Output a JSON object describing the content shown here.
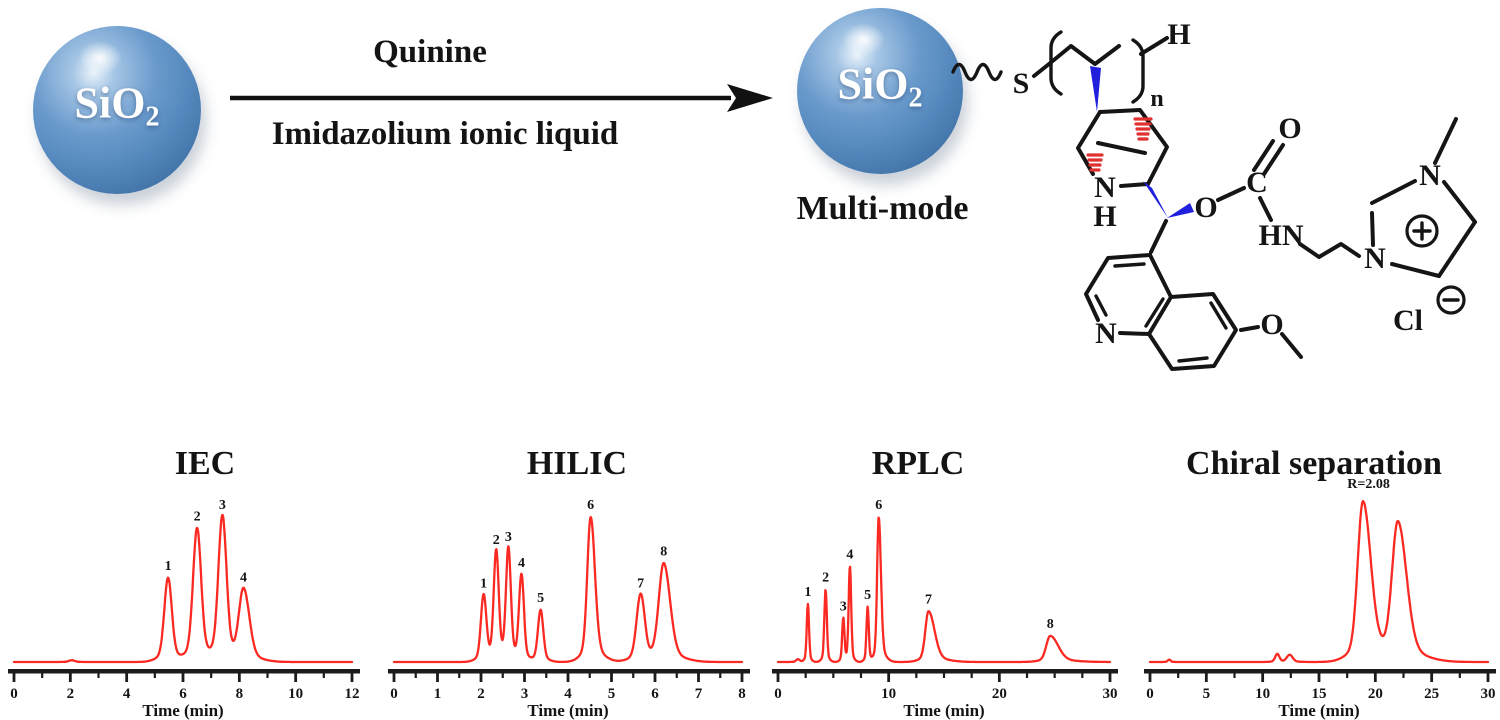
{
  "scheme": {
    "reactant_sphere": {
      "label_main": "SiO",
      "label_sub": "2"
    },
    "arrow": {
      "top_label": "Quinine",
      "bottom_label": "Imidazolium ionic liquid"
    },
    "product_sphere": {
      "label_main": "SiO",
      "label_sub": "2",
      "caption": "Multi-mode"
    },
    "structure": {
      "atoms": {
        "sulfur": "S",
        "terminal_h": "H",
        "repeat_n": "n",
        "quinuclidine_n": "N",
        "quinuclidine_nh": "H",
        "ester_o": "O",
        "carbonyl_c": "C",
        "carbonyl_o": "O",
        "amide_hn": "HN",
        "imidazolium_n_bottom": "N",
        "imidazolium_n_top": "N",
        "plus_sign": "+",
        "chloride": "Cl",
        "minus_sign": "−",
        "quinoline_n": "N",
        "methoxy_o": "O"
      }
    }
  },
  "colors": {
    "trace_red": "#fa2a22",
    "axis_black": "#1b1b1b",
    "sphere_blue": "#5e93c8",
    "wedge_blue": "#2020dd",
    "hash_red": "#e03030"
  },
  "chart_data": [
    {
      "type": "line",
      "title": "IEC",
      "xlabel": "Time (min)",
      "xlim": [
        0,
        12
      ],
      "ticks": [
        0,
        2,
        4,
        6,
        8,
        10,
        12
      ],
      "minor_step": 1,
      "grid": false,
      "ylim": [
        0,
        1.1
      ],
      "peaks": [
        {
          "t": 2.05,
          "h": 0.012,
          "w": 0.1,
          "label": ""
        },
        {
          "t": 5.47,
          "h": 0.58,
          "w": 0.13,
          "label": "1"
        },
        {
          "t": 6.5,
          "h": 0.92,
          "w": 0.14,
          "label": "2"
        },
        {
          "t": 7.4,
          "h": 1.0,
          "w": 0.14,
          "label": "3"
        },
        {
          "t": 8.15,
          "h": 0.5,
          "w": 0.16,
          "tail": 1.25,
          "label": "4"
        }
      ]
    },
    {
      "type": "line",
      "title": "HILIC",
      "xlabel": "Time (min)",
      "xlim": [
        0,
        8
      ],
      "ticks": [
        0,
        1,
        2,
        3,
        4,
        5,
        6,
        7,
        8
      ],
      "minor_step": 0.5,
      "grid": false,
      "ylim": [
        0,
        1.1
      ],
      "peaks": [
        {
          "t": 2.06,
          "h": 0.46,
          "w": 0.06,
          "label": "1"
        },
        {
          "t": 2.35,
          "h": 0.76,
          "w": 0.055,
          "label": "2"
        },
        {
          "t": 2.63,
          "h": 0.78,
          "w": 0.055,
          "label": "3"
        },
        {
          "t": 2.93,
          "h": 0.6,
          "w": 0.055,
          "label": "4"
        },
        {
          "t": 3.37,
          "h": 0.36,
          "w": 0.06,
          "label": "5"
        },
        {
          "t": 4.52,
          "h": 1.0,
          "w": 0.075,
          "tail": 1.3,
          "label": "6"
        },
        {
          "t": 5.67,
          "h": 0.46,
          "w": 0.09,
          "label": "7"
        },
        {
          "t": 6.2,
          "h": 0.68,
          "w": 0.11,
          "tail": 1.3,
          "label": "8"
        }
      ]
    },
    {
      "type": "line",
      "title": "RPLC",
      "xlabel": "Time (min)",
      "xlim": [
        0,
        30
      ],
      "ticks": [
        0,
        10,
        20,
        30
      ],
      "minor_step": 2.5,
      "grid": false,
      "ylim": [
        0,
        1.1
      ],
      "peaks": [
        {
          "t": 1.8,
          "h": 0.02,
          "w": 0.15,
          "label": ""
        },
        {
          "t": 2.7,
          "h": 0.4,
          "w": 0.1,
          "label": "1"
        },
        {
          "t": 4.3,
          "h": 0.5,
          "w": 0.11,
          "label": "2"
        },
        {
          "t": 5.9,
          "h": 0.3,
          "w": 0.1,
          "label": "3"
        },
        {
          "t": 6.5,
          "h": 0.66,
          "w": 0.11,
          "label": "4"
        },
        {
          "t": 8.1,
          "h": 0.38,
          "w": 0.1,
          "label": "5"
        },
        {
          "t": 9.1,
          "h": 1.0,
          "w": 0.14,
          "tail": 1.4,
          "label": "6"
        },
        {
          "t": 13.6,
          "h": 0.35,
          "w": 0.28,
          "tail": 1.9,
          "label": "7"
        },
        {
          "t": 24.6,
          "h": 0.18,
          "w": 0.35,
          "tail": 2.0,
          "label": "8"
        }
      ]
    },
    {
      "type": "line",
      "title": "Chiral separation",
      "xlabel": "Time (min)",
      "xlim": [
        0,
        30
      ],
      "ticks": [
        0,
        5,
        10,
        15,
        20,
        25,
        30
      ],
      "minor_step": 2.5,
      "grid": false,
      "ylim": [
        0,
        1.1
      ],
      "annotation": {
        "text": "R=2.08",
        "t": 19.4
      },
      "peaks": [
        {
          "t": 1.7,
          "h": 0.015,
          "w": 0.12,
          "label": ""
        },
        {
          "t": 11.3,
          "h": 0.05,
          "w": 0.18,
          "label": ""
        },
        {
          "t": 12.4,
          "h": 0.045,
          "w": 0.25,
          "label": ""
        },
        {
          "t": 18.9,
          "h": 1.0,
          "w": 0.45,
          "tail": 1.5,
          "label": ""
        },
        {
          "t": 22.0,
          "h": 0.86,
          "w": 0.5,
          "tail": 1.5,
          "label": ""
        }
      ]
    }
  ]
}
